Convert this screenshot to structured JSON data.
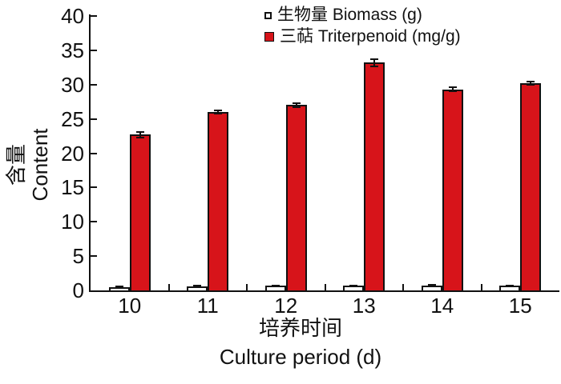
{
  "figure": {
    "background": "#ffffff",
    "axis_color": "#111111"
  },
  "legend": {
    "position": "top-right",
    "items": [
      {
        "label": "生物量 Biomass (g)",
        "swatch": "open-square-icon",
        "color": "#ffffff"
      },
      {
        "label": "三萜 Triterpenoid (mg/g)",
        "swatch": "filled-square-icon",
        "color": "#d7141a"
      }
    ]
  },
  "axes": {
    "y_label_zh": "含量",
    "y_label_en": "Content",
    "x_label_zh": "培养时间",
    "x_label_en": "Culture period (d)",
    "y_ticks": [
      0,
      5,
      10,
      15,
      20,
      25,
      30,
      35,
      40
    ],
    "x_ticks": [
      "10",
      "11",
      "12",
      "13",
      "14",
      "15"
    ]
  },
  "chart_data": {
    "type": "bar",
    "title": "",
    "xlabel": "培养时间 Culture period (d)",
    "ylabel": "含量 Content",
    "categories": [
      10,
      11,
      12,
      13,
      14,
      15
    ],
    "series": [
      {
        "name": "生物量 Biomass (g)",
        "unit": "g",
        "color": "#ffffff",
        "values": [
          0.5,
          0.6,
          0.65,
          0.7,
          0.75,
          0.7
        ],
        "errors": [
          0.05,
          0.05,
          0.05,
          0.05,
          0.05,
          0.05
        ]
      },
      {
        "name": "三萜 Triterpenoid (mg/g)",
        "unit": "mg/g",
        "color": "#d7141a",
        "values": [
          22.7,
          26.0,
          27.0,
          33.2,
          29.3,
          30.2
        ],
        "errors": [
          0.4,
          0.25,
          0.3,
          0.5,
          0.3,
          0.25
        ]
      }
    ],
    "ylim": [
      0,
      40
    ],
    "ytick_step": 5,
    "grid": false,
    "legend_position": "top-right",
    "error_bars": true
  }
}
